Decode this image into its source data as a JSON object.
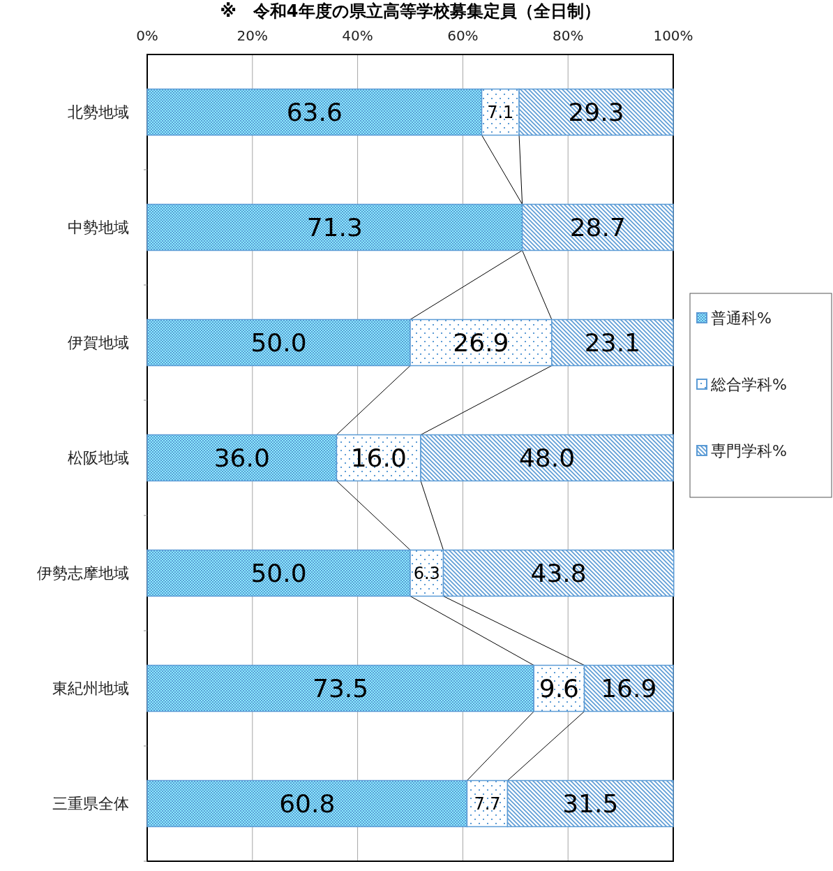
{
  "chart_data": {
    "type": "bar",
    "orientation": "horizontal",
    "stacked": true,
    "title": "※　令和4年度の県立高等学校募集定員（全日制）",
    "categories": [
      "北勢地域",
      "中勢地域",
      "伊賀地域",
      "松阪地域",
      "伊勢志摩地域",
      "東紀州地域",
      "三重県全体"
    ],
    "series": [
      {
        "name": "普通科%",
        "color": "#5b9bd5",
        "values": [
          63.6,
          71.3,
          50.0,
          36.0,
          50.0,
          73.5,
          60.8
        ],
        "value_labels": [
          "63.6",
          "71.3",
          "50.0",
          "36.0",
          "50.0",
          "73.5",
          "60.8"
        ]
      },
      {
        "name": "総合学科%",
        "color": "#5b9bd5",
        "values": [
          7.1,
          0,
          26.9,
          16.0,
          6.3,
          9.6,
          7.7
        ],
        "value_labels": [
          "7.1",
          null,
          "26.9",
          "16.0",
          "6.3",
          "9.6",
          "7.7"
        ]
      },
      {
        "name": "専門学科%",
        "color": "#5b9bd5",
        "values": [
          29.3,
          28.7,
          23.1,
          48.0,
          43.8,
          16.9,
          31.5
        ],
        "value_labels": [
          "29.3",
          "28.7",
          "23.1",
          "48.0",
          "43.8",
          "16.9",
          "31.5"
        ]
      }
    ],
    "xlim": [
      0,
      100
    ],
    "xticks": [
      {
        "value": 0,
        "label": "0%"
      },
      {
        "value": 20,
        "label": "20%"
      },
      {
        "value": 40,
        "label": "40%"
      },
      {
        "value": 60,
        "label": "60%"
      },
      {
        "value": 80,
        "label": "80%"
      },
      {
        "value": 100,
        "label": "100%"
      }
    ],
    "grid": "x",
    "legend": "right"
  }
}
